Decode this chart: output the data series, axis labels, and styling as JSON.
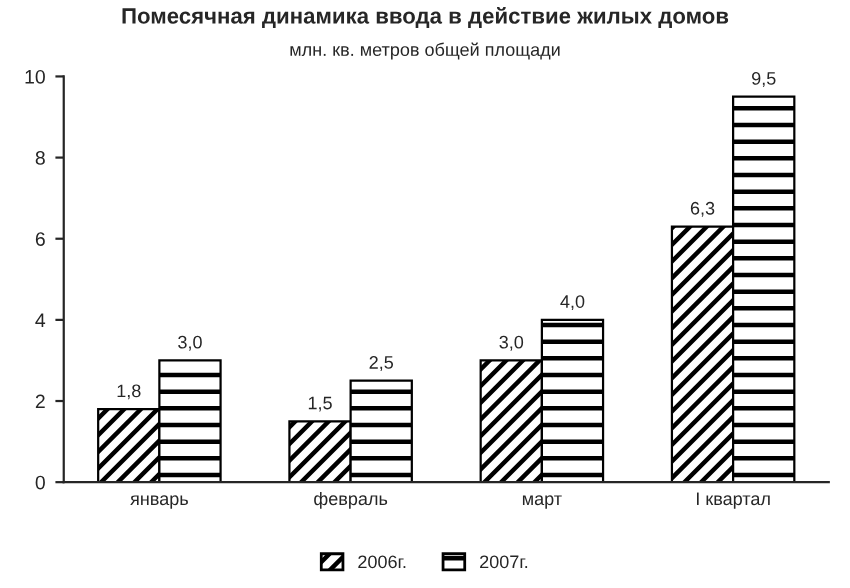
{
  "chart_data": {
    "type": "bar",
    "title": "Помесячная динамика ввода в действие жилых домов",
    "subtitle": "млн. кв. метров общей площади",
    "categories": [
      "январь",
      "февраль",
      "март",
      "I квартал"
    ],
    "series": [
      {
        "name": "2006г.",
        "color": "#000000",
        "values": [
          1.8,
          1.5,
          3.0,
          6.3
        ],
        "value_labels": [
          "1,8",
          "1,5",
          "3,0",
          "6,3"
        ]
      },
      {
        "name": "2007г.",
        "color": "#000000",
        "values": [
          3.0,
          2.5,
          4.0,
          9.5
        ],
        "value_labels": [
          "3,0",
          "2,5",
          "4,0",
          "9,5"
        ]
      }
    ],
    "ylim": [
      0,
      10
    ],
    "yticks": [
      0,
      2,
      4,
      6,
      8,
      10
    ],
    "grid": false,
    "legend": "bottom"
  }
}
